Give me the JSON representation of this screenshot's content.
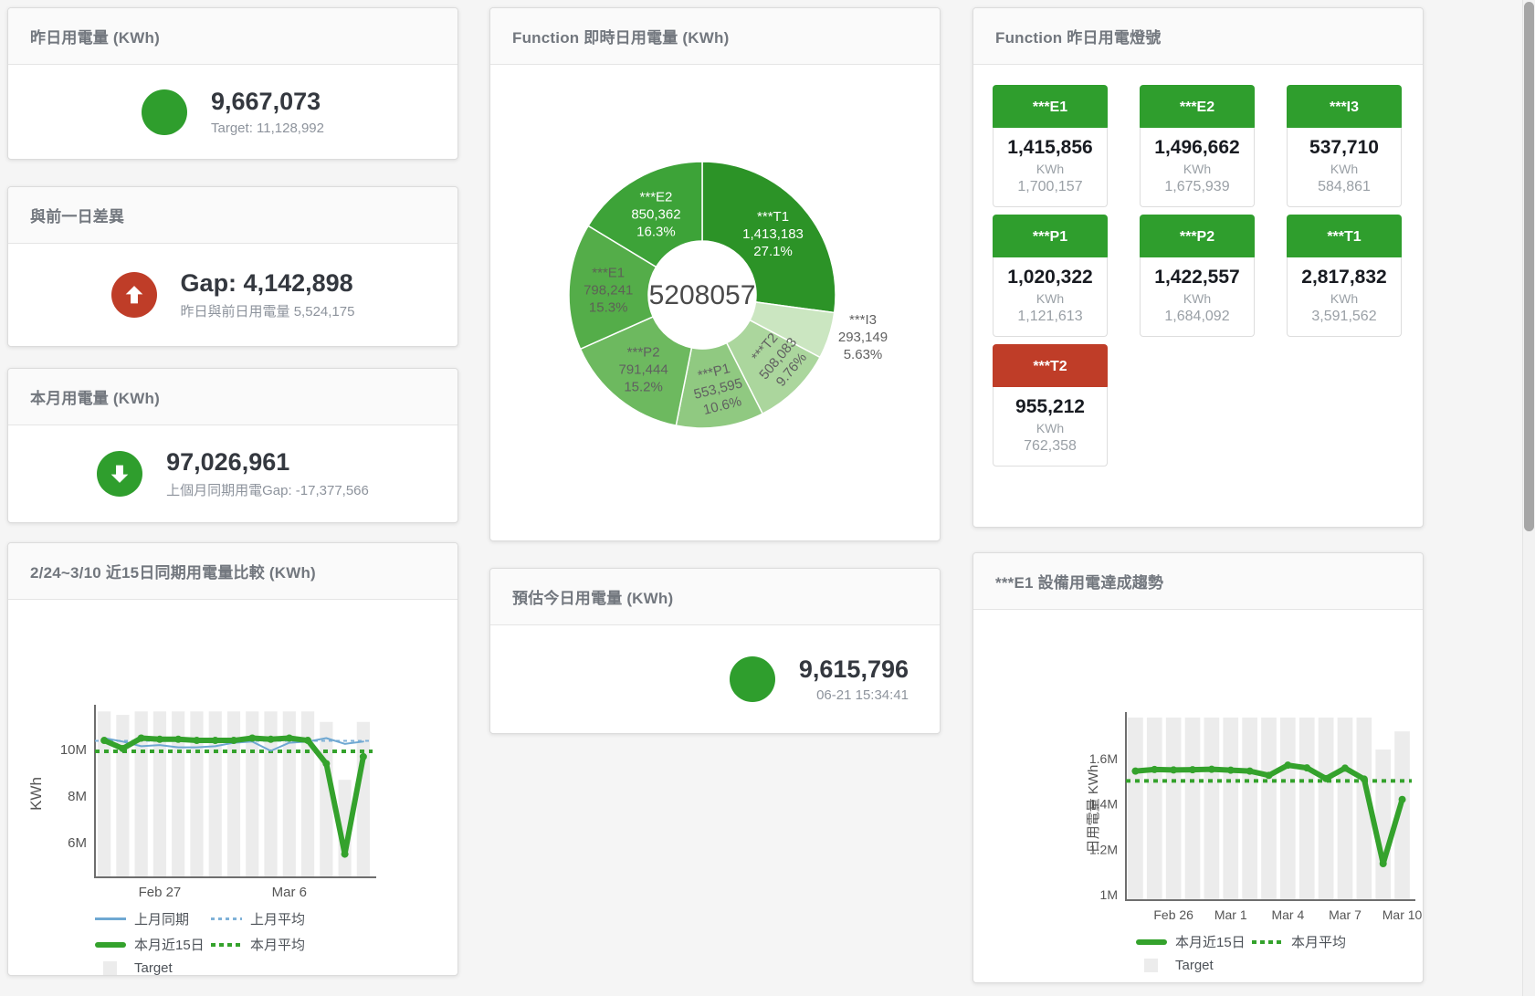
{
  "colors": {
    "green": "#2f9e2d",
    "red": "#bf3d28",
    "bar_gray": "#ececec",
    "blue_line": "#6fa8d2",
    "green_line": "#34a22c"
  },
  "panels": {
    "yesterday": {
      "title": "昨日用電量 (KWh)",
      "value": "9,667,073",
      "subtitle": "Target: 11,128,992",
      "circle_color": "#2f9e2d"
    },
    "gap": {
      "title": "與前一日差異",
      "value": "Gap: 4,142,898",
      "subtitle": "昨日與前日用電量 5,524,175",
      "circle_color": "#bf3d28"
    },
    "month": {
      "title": "本月用電量 (KWh)",
      "value": "97,026,961",
      "subtitle": "上個月同期用電Gap: -17,377,566",
      "circle_color": "#2f9e2d"
    },
    "compare15": {
      "title": "2/24~3/10 近15日同期用電量比較 (KWh)"
    },
    "realtime": {
      "title": "Function 即時日用電量 (KWh)"
    },
    "estimate": {
      "title": "預估今日用電量 (KWh)",
      "value": "9,615,796",
      "subtitle": "06-21 15:34:41",
      "circle_color": "#2f9e2d"
    },
    "lights": {
      "title": "Function 昨日用電燈號",
      "tiles": [
        {
          "label": "***E1",
          "value": "1,415,856",
          "unit": "KWh",
          "target": "1,700,157",
          "header_color": "#2f9e2d"
        },
        {
          "label": "***E2",
          "value": "1,496,662",
          "unit": "KWh",
          "target": "1,675,939",
          "header_color": "#2f9e2d"
        },
        {
          "label": "***I3",
          "value": "537,710",
          "unit": "KWh",
          "target": "584,861",
          "header_color": "#2f9e2d"
        },
        {
          "label": "***P1",
          "value": "1,020,322",
          "unit": "KWh",
          "target": "1,121,613",
          "header_color": "#2f9e2d"
        },
        {
          "label": "***P2",
          "value": "1,422,557",
          "unit": "KWh",
          "target": "1,684,092",
          "header_color": "#2f9e2d"
        },
        {
          "label": "***T1",
          "value": "2,817,832",
          "unit": "KWh",
          "target": "3,591,562",
          "header_color": "#2f9e2d"
        },
        {
          "label": "***T2",
          "value": "955,212",
          "unit": "KWh",
          "target": "762,358",
          "header_color": "#bf3d28"
        }
      ]
    },
    "e1trend": {
      "title": "***E1 設備用電達成趨勢"
    }
  },
  "chart_data": [
    {
      "type": "pie",
      "title": "Function 即時日用電量 (KWh)",
      "center_total": "5208057",
      "slices": [
        {
          "name": "***T1",
          "value": 1413183,
          "value_str": "1,413,183",
          "pct_str": "27.1%",
          "color": "#2c9327",
          "label_color": "#ffffff"
        },
        {
          "name": "***I3",
          "value": 293149,
          "value_str": "293,149",
          "pct_str": "5.63%",
          "color": "#cbe6c1",
          "label_color": "#606060",
          "outside": true
        },
        {
          "name": "***T2",
          "value": 508083,
          "value_str": "508,083",
          "pct_str": "9.76%",
          "color": "#abd69d",
          "label_color": "#606060",
          "label_rotate": -50
        },
        {
          "name": "***P1",
          "value": 553595,
          "value_str": "553,595",
          "pct_str": "10.6%",
          "color": "#90c981",
          "label_color": "#606060",
          "label_rotate": -14
        },
        {
          "name": "***P2",
          "value": 791444,
          "value_str": "791,444",
          "pct_str": "15.2%",
          "color": "#6db95f",
          "label_color": "#606060"
        },
        {
          "name": "***E1",
          "value": 798241,
          "value_str": "798,241",
          "pct_str": "15.3%",
          "color": "#54ad49",
          "label_color": "#5d6156"
        },
        {
          "name": "***E2",
          "value": 850362,
          "value_str": "850,362",
          "pct_str": "16.3%",
          "color": "#3da338",
          "label_color": "#ffffff"
        }
      ]
    },
    {
      "type": "line",
      "title": "2/24~3/10 近15日同期用電量比較 (KWh)",
      "ylabel": "KWh",
      "x_count": 15,
      "ylim": [
        4.5,
        11.7
      ],
      "yticks": [
        {
          "label": "10M",
          "value": 10
        },
        {
          "label": "8M",
          "value": 8
        },
        {
          "label": "6M",
          "value": 6
        }
      ],
      "xticks": [
        {
          "label": "Feb 27",
          "at": 3
        },
        {
          "label": "Mar 6",
          "at": 10
        }
      ],
      "series": [
        {
          "name": "Target",
          "type": "bar",
          "color": "#ececec",
          "values": [
            11.65,
            11.5,
            11.65,
            11.65,
            11.65,
            11.65,
            11.65,
            11.65,
            11.65,
            11.65,
            11.65,
            11.65,
            11.2,
            8.7,
            11.2
          ]
        },
        {
          "name": "上月平均",
          "type": "avg",
          "color": "#7fb2d8",
          "width": 2,
          "dash": "4 4",
          "value": 10.38
        },
        {
          "name": "本月平均",
          "type": "avg",
          "color": "#34a22c",
          "width": 4,
          "dash": "5 5",
          "value": 9.93
        },
        {
          "name": "上月同期",
          "type": "line",
          "color": "#6fa8d2",
          "width": 2,
          "values": [
            10.5,
            10.35,
            10.15,
            10.2,
            10.1,
            10.1,
            10.15,
            10.3,
            10.35,
            9.95,
            10.3,
            10.35,
            10.5,
            10.25,
            10.35
          ]
        },
        {
          "name": "本月近15日",
          "type": "line",
          "color": "#34a22c",
          "width": 6,
          "markers": true,
          "values": [
            10.4,
            10.05,
            10.5,
            10.45,
            10.45,
            10.4,
            10.4,
            10.4,
            10.5,
            10.45,
            10.5,
            10.4,
            9.4,
            5.5,
            9.7
          ]
        }
      ],
      "legend": [
        {
          "label": "上月同期",
          "color": "#6fa8d2",
          "style": "line"
        },
        {
          "label": "上月平均",
          "color": "#7fb2d8",
          "style": "dash"
        },
        {
          "label": "本月近15日",
          "color": "#34a22c",
          "style": "thick"
        },
        {
          "label": "本月平均",
          "color": "#34a22c",
          "style": "dots"
        },
        {
          "label": "Target",
          "color": "#ececec",
          "style": "square"
        }
      ]
    },
    {
      "type": "line",
      "title": "***E1 設備用電達成趨勢",
      "ylabel": "日用電量 KWh",
      "x_count": 15,
      "ylim": [
        0.976,
        1.781
      ],
      "yticks": [
        {
          "label": "1.6M",
          "value": 1.6
        },
        {
          "label": "1.4M",
          "value": 1.4
        },
        {
          "label": "1.2M",
          "value": 1.2
        },
        {
          "label": "1M",
          "value": 1.0
        }
      ],
      "xticks": [
        {
          "label": "Feb 26",
          "at": 2
        },
        {
          "label": "Mar 1",
          "at": 5
        },
        {
          "label": "Mar 4",
          "at": 8
        },
        {
          "label": "Mar 7",
          "at": 11
        },
        {
          "label": "Mar 10",
          "at": 14
        }
      ],
      "series": [
        {
          "name": "Target",
          "type": "bar",
          "color": "#ececec",
          "values": [
            1.79,
            1.79,
            1.79,
            1.79,
            1.79,
            1.79,
            1.79,
            1.79,
            1.79,
            1.79,
            1.79,
            1.79,
            1.79,
            1.64,
            1.72
          ]
        },
        {
          "name": "本月平均",
          "type": "avg",
          "color": "#34a22c",
          "width": 4,
          "dash": "5 5",
          "value": 1.502
        },
        {
          "name": "本月近15日",
          "type": "line",
          "color": "#34a22c",
          "width": 6,
          "markers": true,
          "values": [
            1.545,
            1.552,
            1.55,
            1.551,
            1.553,
            1.549,
            1.545,
            1.526,
            1.571,
            1.559,
            1.512,
            1.558,
            1.51,
            1.137,
            1.42
          ]
        }
      ],
      "legend": [
        {
          "label": "本月近15日",
          "color": "#34a22c",
          "style": "thick"
        },
        {
          "label": "本月平均",
          "color": "#34a22c",
          "style": "dots"
        },
        {
          "label": "Target",
          "color": "#ececec",
          "style": "square"
        }
      ]
    }
  ]
}
